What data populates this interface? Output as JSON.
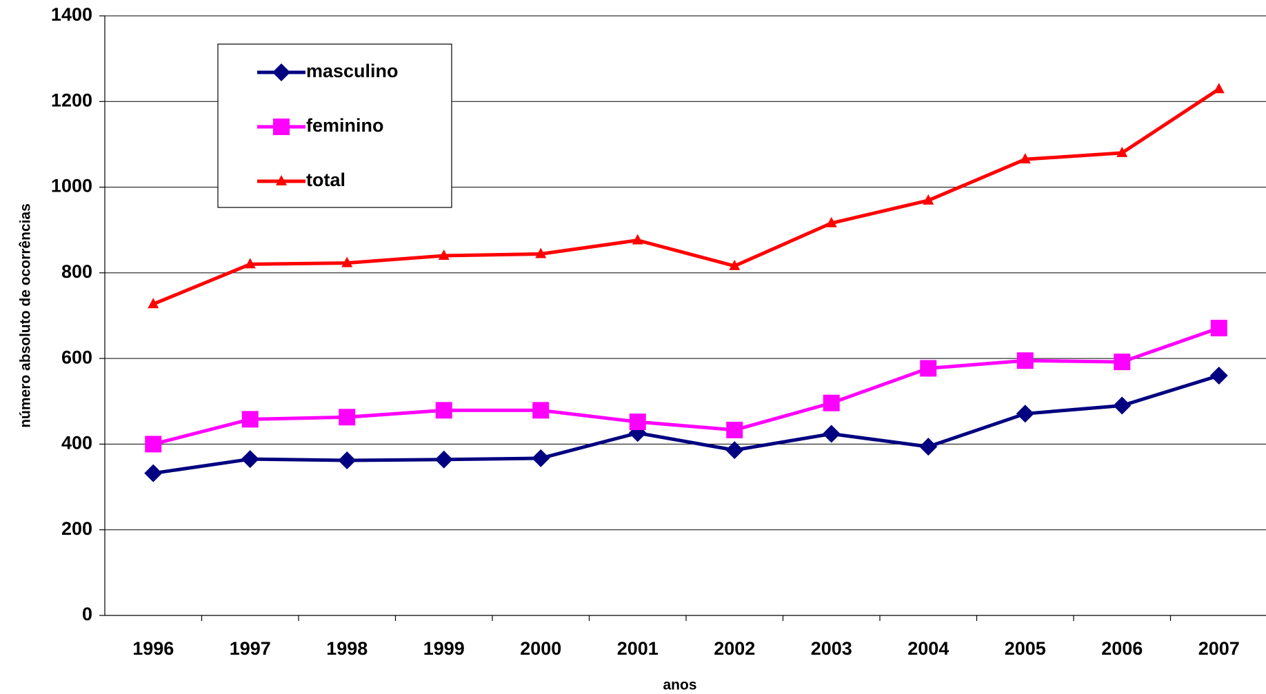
{
  "chart_data": {
    "type": "line",
    "x_label": "anos",
    "y_label": "número absoluto de ocorrências",
    "categories": [
      "1996",
      "1997",
      "1998",
      "1999",
      "2000",
      "2001",
      "2002",
      "2003",
      "2004",
      "2005",
      "2006",
      "2007"
    ],
    "series": [
      {
        "name": "masculino",
        "color": "#000080",
        "marker": "diamond",
        "values": [
          332,
          365,
          362,
          364,
          367,
          426,
          386,
          424,
          394,
          471,
          490,
          560
        ]
      },
      {
        "name": "feminino",
        "color": "#ff00ff",
        "marker": "square",
        "values": [
          400,
          458,
          463,
          479,
          479,
          452,
          433,
          496,
          577,
          595,
          592,
          671
        ]
      },
      {
        "name": "total",
        "color": "#ff0000",
        "marker": "triangle",
        "values": [
          727,
          820,
          823,
          840,
          844,
          876,
          816,
          916,
          969,
          1065,
          1080,
          1229
        ]
      }
    ],
    "ylim": [
      0,
      1400
    ],
    "yticks": [
      0,
      200,
      400,
      600,
      800,
      1000,
      1200,
      1400
    ],
    "grid": true,
    "legend": "upper left"
  }
}
